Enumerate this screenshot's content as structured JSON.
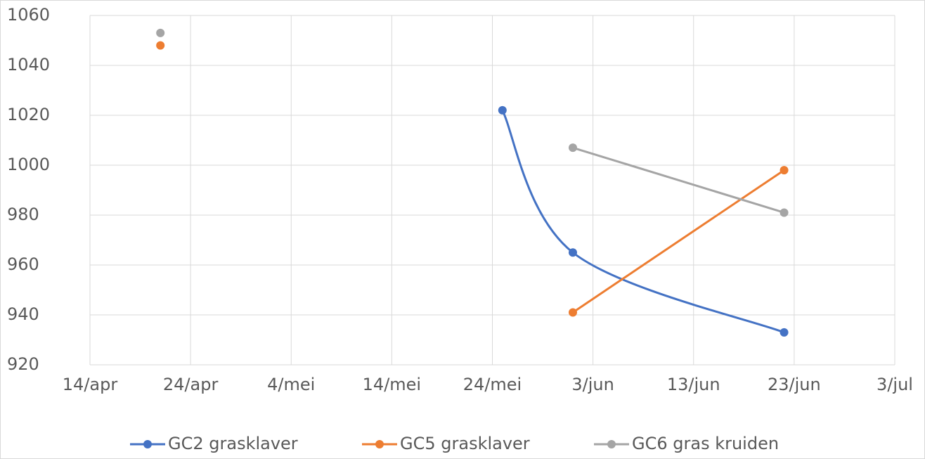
{
  "chart_data": {
    "type": "line",
    "x": [
      "21/apr",
      "25/mei",
      "1/jun",
      "22/jun"
    ],
    "series": [
      {
        "name": "GC2 grasklaver",
        "color": "#4472c4",
        "smooth": true,
        "values": [
          null,
          1022,
          965,
          933
        ]
      },
      {
        "name": "GC5 grasklaver",
        "color": "#ed7d31",
        "smooth": false,
        "values": [
          1048,
          null,
          941,
          998
        ]
      },
      {
        "name": "GC6 gras kruiden",
        "color": "#a5a5a5",
        "smooth": false,
        "values": [
          1053,
          null,
          1007,
          981
        ]
      }
    ],
    "xlim": [
      "14/apr",
      "3/jul"
    ],
    "xticks": [
      "14/apr",
      "24/apr",
      "4/mei",
      "14/mei",
      "24/mei",
      "3/jun",
      "13/jun",
      "23/jun",
      "3/jul"
    ],
    "ylim": [
      920,
      1060
    ],
    "yticks": [
      920,
      940,
      960,
      980,
      1000,
      1020,
      1040,
      1060
    ],
    "grid": true,
    "legend": "bottom"
  }
}
